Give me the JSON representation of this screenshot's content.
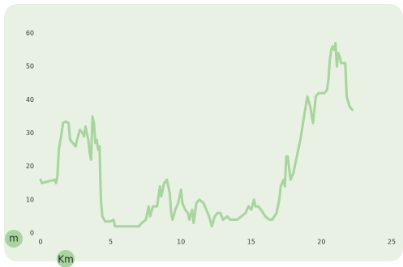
{
  "chart_data": {
    "type": "line",
    "x_label": "Km",
    "y_label": "m",
    "xlim": [
      0,
      25
    ],
    "ylim": [
      0,
      60
    ],
    "xticks": [
      0,
      5,
      10,
      15,
      20,
      25
    ],
    "yticks": [
      0,
      10,
      20,
      30,
      40,
      50,
      60
    ],
    "series": [
      {
        "color": "#a8d49e",
        "x": [
          0,
          0.1,
          1,
          1.1,
          1.2,
          1.3,
          1.5,
          1.6,
          1.8,
          2.0,
          2.1,
          2.3,
          2.5,
          2.6,
          2.8,
          3.0,
          3.1,
          3.2,
          3.4,
          3.5,
          3.6,
          3.7,
          3.8,
          3.9,
          4.0,
          4.1,
          4.2,
          4.3,
          4.4,
          4.6,
          5.0,
          5.2,
          5.3,
          6,
          7,
          7.2,
          7.5,
          7.7,
          7.8,
          8,
          8.3,
          8.5,
          8.6,
          8.8,
          9.0,
          9.1,
          9.2,
          9.3,
          9.4,
          9.6,
          9.8,
          10,
          10.1,
          10.3,
          10.5,
          10.6,
          10.8,
          10.9,
          11.1,
          11.3,
          11.6,
          11.8,
          12,
          12.2,
          12.4,
          12.6,
          12.8,
          13,
          13.3,
          13.5,
          14,
          14.3,
          14.6,
          14.8,
          15,
          15.2,
          15.3,
          15.5,
          15.7,
          16,
          16.3,
          16.5,
          16.8,
          17,
          17.1,
          17.3,
          17.4,
          17.5,
          17.6,
          17.8,
          18,
          18.5,
          18.8,
          19,
          19.2,
          19.4,
          19.6,
          19.8,
          20.2,
          20.4,
          20.5,
          20.6,
          20.7,
          20.8,
          20.9,
          21,
          21.1,
          21.2,
          21.3,
          21.4,
          21.7,
          21.8,
          22,
          22.2
        ],
        "values": [
          16,
          15,
          16,
          15,
          17,
          25,
          30,
          33,
          33.5,
          33,
          28,
          27,
          26,
          28,
          31,
          30,
          29,
          32,
          28,
          24,
          22,
          35,
          33,
          27,
          28,
          25,
          26,
          10,
          5,
          3.5,
          3.5,
          4,
          2,
          2,
          2,
          3,
          4,
          8,
          5,
          8,
          8,
          14,
          11,
          15,
          16,
          14,
          12,
          6,
          4,
          7,
          9,
          13,
          9,
          7,
          6,
          4,
          7,
          3,
          9,
          10,
          9,
          7,
          5,
          2,
          5,
          6,
          6,
          4,
          5,
          4,
          4,
          5,
          6,
          8,
          7,
          10,
          8,
          8,
          7,
          5,
          4,
          4,
          6,
          10,
          14,
          16,
          14,
          23,
          23,
          16,
          18,
          28,
          36,
          41,
          38,
          33,
          41,
          42,
          42,
          43,
          46,
          52,
          55,
          56,
          55,
          57,
          50,
          54,
          53,
          51,
          51,
          41,
          38,
          37
        ]
      }
    ]
  }
}
